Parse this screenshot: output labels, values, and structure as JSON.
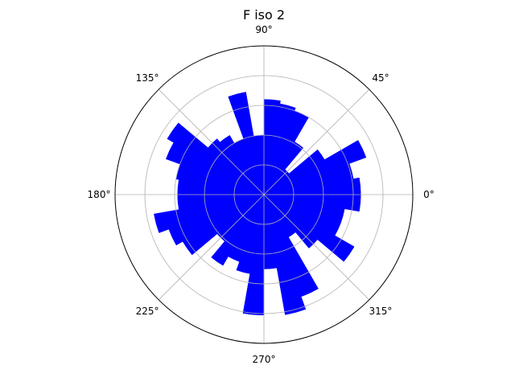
{
  "chart_data": {
    "type": "polar-bar",
    "title": "F iso 2",
    "angular_ticks": [
      "0°",
      "45°",
      "90°",
      "135°",
      "180°",
      "225°",
      "270°",
      "315°"
    ],
    "angular_tick_degrees": [
      0,
      45,
      90,
      135,
      180,
      225,
      270,
      315
    ],
    "radial_grid_count": 5,
    "bar_color": "#0000ff",
    "bin_width_deg": 10,
    "bars": [
      {
        "theta": 5,
        "r": 0.65
      },
      {
        "theta": 15,
        "r": 0.61
      },
      {
        "theta": 25,
        "r": 0.73
      },
      {
        "theta": 35,
        "r": 0.47
      },
      {
        "theta": 45,
        "r": 0.22
      },
      {
        "theta": 55,
        "r": 0.41
      },
      {
        "theta": 65,
        "r": 0.6
      },
      {
        "theta": 75,
        "r": 0.62
      },
      {
        "theta": 85,
        "r": 0.64
      },
      {
        "theta": 95,
        "r": 0.4
      },
      {
        "theta": 105,
        "r": 0.7
      },
      {
        "theta": 115,
        "r": 0.4
      },
      {
        "theta": 125,
        "r": 0.46
      },
      {
        "theta": 135,
        "r": 0.49
      },
      {
        "theta": 145,
        "r": 0.75
      },
      {
        "theta": 155,
        "r": 0.7
      },
      {
        "theta": 165,
        "r": 0.6
      },
      {
        "theta": 175,
        "r": 0.58
      },
      {
        "theta": 185,
        "r": 0.58
      },
      {
        "theta": 195,
        "r": 0.75
      },
      {
        "theta": 205,
        "r": 0.68
      },
      {
        "theta": 215,
        "r": 0.63
      },
      {
        "theta": 225,
        "r": 0.41
      },
      {
        "theta": 235,
        "r": 0.55
      },
      {
        "theta": 245,
        "r": 0.48
      },
      {
        "theta": 255,
        "r": 0.54
      },
      {
        "theta": 265,
        "r": 0.81
      },
      {
        "theta": 275,
        "r": 0.5
      },
      {
        "theta": 285,
        "r": 0.82
      },
      {
        "theta": 295,
        "r": 0.73
      },
      {
        "theta": 305,
        "r": 0.33
      },
      {
        "theta": 315,
        "r": 0.47
      },
      {
        "theta": 325,
        "r": 0.7
      },
      {
        "theta": 335,
        "r": 0.55
      },
      {
        "theta": 345,
        "r": 0.55
      },
      {
        "theta": 355,
        "r": 0.65
      }
    ]
  }
}
